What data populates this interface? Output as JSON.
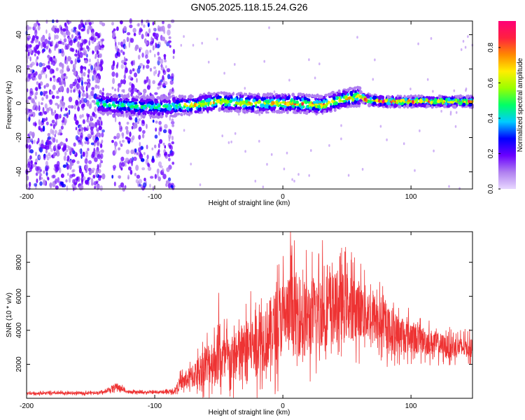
{
  "figure_title": "GN05.2025.118.15.24.G26",
  "chart_data": [
    {
      "type": "heatmap",
      "title": "GN05.2025.118.15.24.G26",
      "xlabel": "Height of straight line (km)",
      "ylabel": "Frequency (Hz)",
      "xlim": [
        -200,
        148
      ],
      "ylim": [
        -50,
        48
      ],
      "x_ticks": [
        -200,
        -100,
        0,
        100
      ],
      "y_ticks": [
        -40,
        -20,
        0,
        20,
        40
      ],
      "grid": false,
      "colorbar": {
        "label": "Normalized spectral amplitude",
        "range": [
          0.0,
          0.95
        ],
        "ticks": [
          0.0,
          0.2,
          0.4,
          0.6,
          0.8
        ],
        "colormap": [
          "#e8d8ff",
          "#b080f0",
          "#6a00ff",
          "#0000ff",
          "#00ccff",
          "#00ff66",
          "#99ff00",
          "#ffee00",
          "#ff8800",
          "#ff2040",
          "#ff0077"
        ]
      },
      "ridge": {
        "x": [
          -145,
          -130,
          -110,
          -90,
          -70,
          -50,
          -30,
          -10,
          10,
          30,
          50,
          60,
          65,
          80,
          100,
          120,
          148
        ],
        "y": [
          0,
          -1,
          -2,
          -2,
          -1,
          1,
          0,
          0,
          0,
          -1,
          3,
          4,
          2,
          1,
          1,
          1,
          1
        ]
      },
      "noise_regions": [
        {
          "x": [
            -200,
            -140
          ],
          "density": "high"
        },
        {
          "x": [
            -133,
            -85
          ],
          "density": "medium"
        }
      ]
    },
    {
      "type": "line",
      "xlabel": "Height of straight line (km)",
      "ylabel": "SNR (10 * v/v)",
      "xlim": [
        -200,
        148
      ],
      "ylim": [
        0,
        9800
      ],
      "x_ticks": [
        -200,
        -100,
        0,
        100
      ],
      "y_ticks": [
        2000,
        4000,
        6000,
        8000
      ],
      "grid": false,
      "line_color": "#ee3333",
      "series": [
        {
          "x": [
            -200,
            -180,
            -160,
            -140,
            -130,
            -120,
            -100,
            -85,
            -80,
            -70,
            -60,
            -50,
            -40,
            -30,
            -20,
            -10,
            0,
            10,
            20,
            30,
            40,
            50,
            60,
            70,
            80,
            90,
            100,
            110,
            120,
            130,
            140,
            148
          ],
          "y": [
            300,
            300,
            300,
            350,
            700,
            350,
            350,
            400,
            900,
            1300,
            2000,
            2400,
            2200,
            2800,
            3400,
            3800,
            4800,
            5000,
            4600,
            5200,
            5300,
            5500,
            5200,
            4800,
            4200,
            3800,
            3600,
            3400,
            3200,
            3000,
            3000,
            3000
          ],
          "spread": [
            150,
            150,
            150,
            150,
            400,
            150,
            150,
            200,
            800,
            1300,
            2200,
            2800,
            2600,
            3000,
            3600,
            3800,
            4200,
            4500,
            4200,
            4000,
            3800,
            3500,
            3200,
            2800,
            2400,
            2000,
            1800,
            1500,
            1300,
            1200,
            1100,
            1100
          ],
          "peaks": [
            {
              "x": 6,
              "y": 9800
            },
            {
              "x": 31,
              "y": 9300
            },
            {
              "x": 49,
              "y": 8900
            },
            {
              "x": -50,
              "y": 6200
            }
          ]
        }
      ]
    }
  ]
}
